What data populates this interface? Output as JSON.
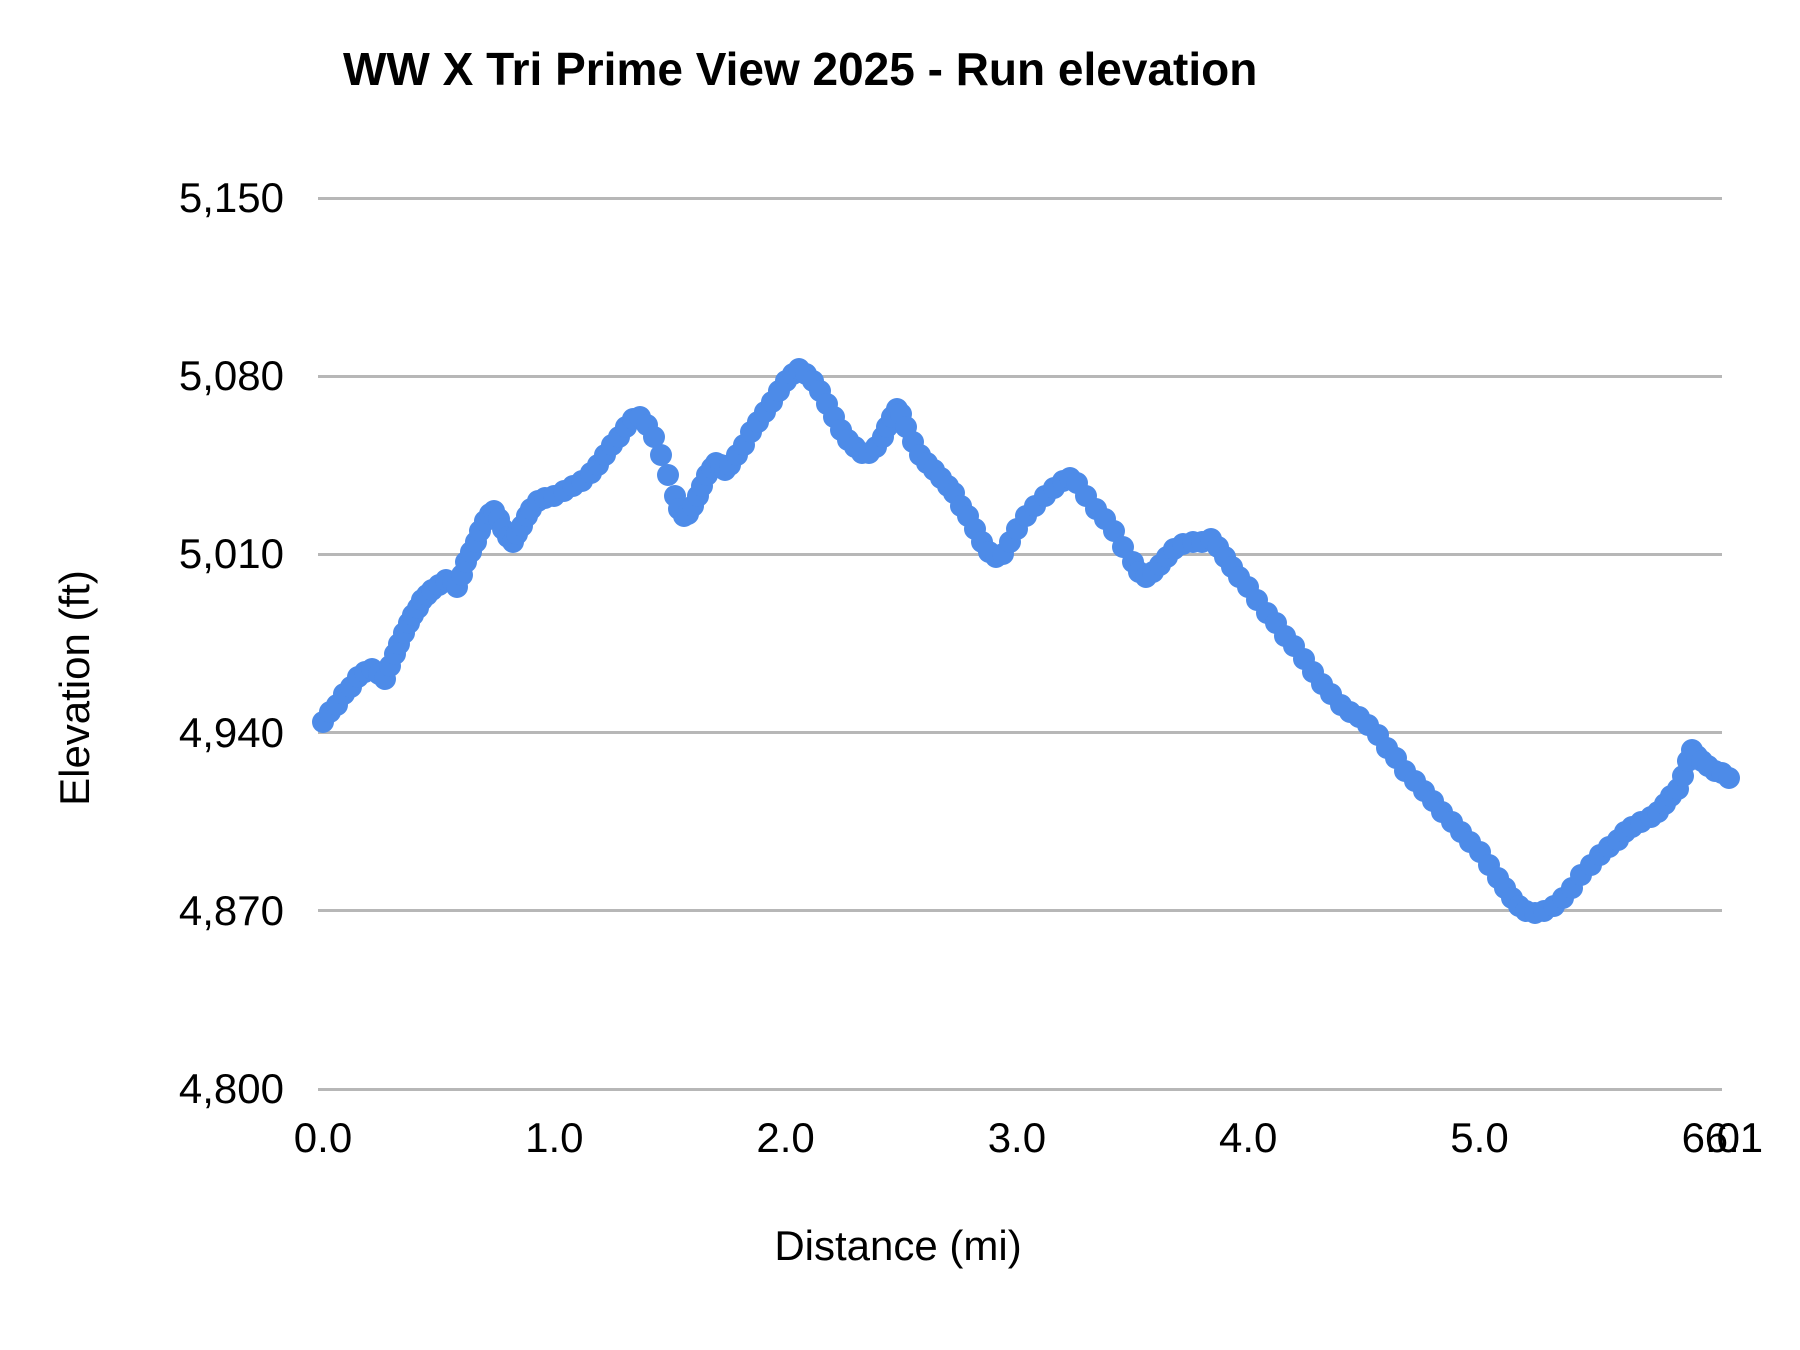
{
  "chart_data": {
    "type": "line",
    "title": "WW X Tri Prime View 2025 - Run elevation",
    "x_label": "Distance (mi)",
    "y_label": "Elevation (ft)",
    "legend": "none",
    "grid": "horizontal-only",
    "xlim": [
      0,
      6.15
    ],
    "ylim": [
      4800,
      5150
    ],
    "x_ticks": {
      "values": [
        0.0,
        1.0,
        2.0,
        3.0,
        4.0,
        5.0,
        6.0,
        6.1
      ],
      "labels": [
        "0.0",
        "1.0",
        "2.0",
        "3.0",
        "4.0",
        "5.0",
        "6.0",
        "6.1"
      ]
    },
    "y_ticks": {
      "values": [
        4800,
        4870,
        4940,
        5010,
        5080,
        5150
      ],
      "labels": [
        "4,800",
        "4,870",
        "4,940",
        "5,010",
        "5,080",
        "5,150"
      ]
    },
    "colors": {
      "point": "#4d8be8",
      "gridline": "#b7b7b7",
      "text": "#000000"
    },
    "series_name": "Run elevation",
    "points": [
      [
        0.0,
        4944
      ],
      [
        0.03,
        4948
      ],
      [
        0.06,
        4951
      ],
      [
        0.09,
        4955
      ],
      [
        0.12,
        4958
      ],
      [
        0.15,
        4962
      ],
      [
        0.18,
        4964
      ],
      [
        0.21,
        4965
      ],
      [
        0.24,
        4963
      ],
      [
        0.27,
        4961
      ],
      [
        0.29,
        4966
      ],
      [
        0.31,
        4971
      ],
      [
        0.33,
        4975
      ],
      [
        0.35,
        4979
      ],
      [
        0.37,
        4983
      ],
      [
        0.39,
        4986
      ],
      [
        0.41,
        4989
      ],
      [
        0.43,
        4992
      ],
      [
        0.45,
        4994
      ],
      [
        0.47,
        4996
      ],
      [
        0.5,
        4998
      ],
      [
        0.53,
        5000
      ],
      [
        0.56,
        4999
      ],
      [
        0.58,
        4997
      ],
      [
        0.6,
        5002
      ],
      [
        0.62,
        5007
      ],
      [
        0.64,
        5011
      ],
      [
        0.66,
        5015
      ],
      [
        0.68,
        5019
      ],
      [
        0.7,
        5023
      ],
      [
        0.72,
        5026
      ],
      [
        0.74,
        5027
      ],
      [
        0.76,
        5024
      ],
      [
        0.78,
        5020
      ],
      [
        0.8,
        5017
      ],
      [
        0.82,
        5015
      ],
      [
        0.84,
        5018
      ],
      [
        0.86,
        5021
      ],
      [
        0.88,
        5025
      ],
      [
        0.9,
        5028
      ],
      [
        0.93,
        5031
      ],
      [
        0.96,
        5032
      ],
      [
        1.0,
        5033
      ],
      [
        1.04,
        5035
      ],
      [
        1.08,
        5037
      ],
      [
        1.12,
        5039
      ],
      [
        1.16,
        5042
      ],
      [
        1.19,
        5045
      ],
      [
        1.22,
        5049
      ],
      [
        1.25,
        5053
      ],
      [
        1.28,
        5056
      ],
      [
        1.31,
        5060
      ],
      [
        1.34,
        5063
      ],
      [
        1.37,
        5064
      ],
      [
        1.4,
        5061
      ],
      [
        1.43,
        5056
      ],
      [
        1.46,
        5049
      ],
      [
        1.49,
        5041
      ],
      [
        1.52,
        5033
      ],
      [
        1.54,
        5028
      ],
      [
        1.56,
        5025
      ],
      [
        1.58,
        5026
      ],
      [
        1.6,
        5029
      ],
      [
        1.62,
        5033
      ],
      [
        1.64,
        5037
      ],
      [
        1.66,
        5041
      ],
      [
        1.68,
        5044
      ],
      [
        1.7,
        5046
      ],
      [
        1.72,
        5045
      ],
      [
        1.74,
        5043
      ],
      [
        1.76,
        5045
      ],
      [
        1.79,
        5049
      ],
      [
        1.82,
        5053
      ],
      [
        1.85,
        5058
      ],
      [
        1.88,
        5062
      ],
      [
        1.91,
        5066
      ],
      [
        1.94,
        5070
      ],
      [
        1.97,
        5074
      ],
      [
        2.0,
        5078
      ],
      [
        2.03,
        5081
      ],
      [
        2.06,
        5083
      ],
      [
        2.09,
        5081
      ],
      [
        2.12,
        5078
      ],
      [
        2.15,
        5074
      ],
      [
        2.18,
        5069
      ],
      [
        2.21,
        5064
      ],
      [
        2.24,
        5059
      ],
      [
        2.27,
        5055
      ],
      [
        2.3,
        5052
      ],
      [
        2.33,
        5050
      ],
      [
        2.36,
        5050
      ],
      [
        2.39,
        5052
      ],
      [
        2.42,
        5056
      ],
      [
        2.44,
        5060
      ],
      [
        2.46,
        5064
      ],
      [
        2.48,
        5067
      ],
      [
        2.5,
        5065
      ],
      [
        2.52,
        5060
      ],
      [
        2.55,
        5054
      ],
      [
        2.58,
        5049
      ],
      [
        2.61,
        5046
      ],
      [
        2.64,
        5043
      ],
      [
        2.67,
        5040
      ],
      [
        2.7,
        5037
      ],
      [
        2.73,
        5034
      ],
      [
        2.76,
        5029
      ],
      [
        2.79,
        5025
      ],
      [
        2.82,
        5020
      ],
      [
        2.85,
        5015
      ],
      [
        2.88,
        5011
      ],
      [
        2.91,
        5009
      ],
      [
        2.94,
        5010
      ],
      [
        2.97,
        5015
      ],
      [
        3.0,
        5020
      ],
      [
        3.04,
        5025
      ],
      [
        3.08,
        5029
      ],
      [
        3.12,
        5033
      ],
      [
        3.16,
        5036
      ],
      [
        3.2,
        5039
      ],
      [
        3.23,
        5040
      ],
      [
        3.26,
        5038
      ],
      [
        3.3,
        5033
      ],
      [
        3.34,
        5028
      ],
      [
        3.38,
        5024
      ],
      [
        3.42,
        5019
      ],
      [
        3.46,
        5013
      ],
      [
        3.5,
        5007
      ],
      [
        3.53,
        5003
      ],
      [
        3.56,
        5001
      ],
      [
        3.59,
        5003
      ],
      [
        3.62,
        5006
      ],
      [
        3.65,
        5009
      ],
      [
        3.68,
        5012
      ],
      [
        3.72,
        5014
      ],
      [
        3.76,
        5015
      ],
      [
        3.8,
        5015
      ],
      [
        3.84,
        5016
      ],
      [
        3.87,
        5013
      ],
      [
        3.9,
        5009
      ],
      [
        3.93,
        5005
      ],
      [
        3.96,
        5001
      ],
      [
        4.0,
        4997
      ],
      [
        4.04,
        4992
      ],
      [
        4.08,
        4987
      ],
      [
        4.12,
        4983
      ],
      [
        4.16,
        4978
      ],
      [
        4.2,
        4974
      ],
      [
        4.24,
        4969
      ],
      [
        4.28,
        4964
      ],
      [
        4.32,
        4959
      ],
      [
        4.36,
        4955
      ],
      [
        4.4,
        4951
      ],
      [
        4.44,
        4948
      ],
      [
        4.48,
        4946
      ],
      [
        4.52,
        4943
      ],
      [
        4.56,
        4939
      ],
      [
        4.6,
        4934
      ],
      [
        4.64,
        4930
      ],
      [
        4.68,
        4925
      ],
      [
        4.72,
        4921
      ],
      [
        4.76,
        4917
      ],
      [
        4.8,
        4913
      ],
      [
        4.84,
        4909
      ],
      [
        4.88,
        4905
      ],
      [
        4.92,
        4901
      ],
      [
        4.96,
        4897
      ],
      [
        5.0,
        4893
      ],
      [
        5.04,
        4888
      ],
      [
        5.08,
        4883
      ],
      [
        5.11,
        4879
      ],
      [
        5.14,
        4875
      ],
      [
        5.17,
        4872
      ],
      [
        5.2,
        4870
      ],
      [
        5.24,
        4869
      ],
      [
        5.28,
        4870
      ],
      [
        5.32,
        4872
      ],
      [
        5.36,
        4875
      ],
      [
        5.4,
        4879
      ],
      [
        5.44,
        4884
      ],
      [
        5.48,
        4888
      ],
      [
        5.52,
        4892
      ],
      [
        5.56,
        4895
      ],
      [
        5.6,
        4898
      ],
      [
        5.63,
        4901
      ],
      [
        5.66,
        4903
      ],
      [
        5.7,
        4905
      ],
      [
        5.74,
        4907
      ],
      [
        5.77,
        4909
      ],
      [
        5.8,
        4912
      ],
      [
        5.83,
        4915
      ],
      [
        5.86,
        4918
      ],
      [
        5.88,
        4923
      ],
      [
        5.9,
        4929
      ],
      [
        5.92,
        4933
      ],
      [
        5.94,
        4931
      ],
      [
        5.96,
        4929
      ],
      [
        5.99,
        4927
      ],
      [
        6.02,
        4925
      ],
      [
        6.05,
        4924
      ],
      [
        6.08,
        4922
      ]
    ]
  }
}
